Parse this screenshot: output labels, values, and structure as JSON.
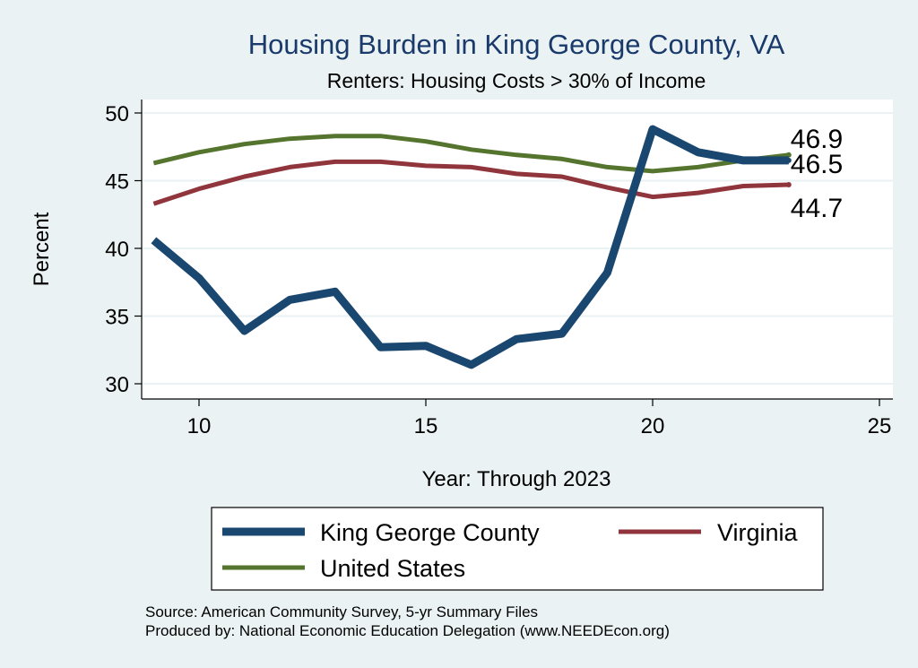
{
  "chart_data": {
    "type": "line",
    "title": "Housing Burden in King George County, VA",
    "subtitle": "Renters: Housing Costs > 30% of Income",
    "xlabel": "Year: Through 2023",
    "ylabel": "Percent",
    "xlim": [
      9,
      25
    ],
    "ylim": [
      30,
      50
    ],
    "xticks": [
      10,
      15,
      20,
      25
    ],
    "yticks": [
      30,
      35,
      40,
      45,
      50
    ],
    "grid": true,
    "x": [
      9,
      10,
      11,
      12,
      13,
      14,
      15,
      16,
      17,
      18,
      19,
      20,
      21,
      22,
      23
    ],
    "series": [
      {
        "name": "King George County",
        "color": "#1a476f",
        "values": [
          40.6,
          37.8,
          33.9,
          36.2,
          36.8,
          32.7,
          32.8,
          31.4,
          33.3,
          33.7,
          38.2,
          48.8,
          47.1,
          46.5,
          46.5
        ],
        "end_label": "46.5"
      },
      {
        "name": "Virginia",
        "color": "#90353b",
        "values": [
          43.3,
          44.4,
          45.3,
          46.0,
          46.4,
          46.4,
          46.1,
          46.0,
          45.5,
          45.3,
          44.5,
          43.8,
          44.1,
          44.6,
          44.7
        ],
        "end_label": "44.7"
      },
      {
        "name": "United States",
        "color": "#55752f",
        "values": [
          46.3,
          47.1,
          47.7,
          48.1,
          48.3,
          48.3,
          47.9,
          47.3,
          46.9,
          46.6,
          46.0,
          45.7,
          46.0,
          46.5,
          46.9
        ],
        "end_label": "46.9"
      }
    ],
    "legend_position": "bottom",
    "footer": [
      "Source: American Community Survey, 5-yr Summary Files",
      "Produced by: National Economic Education Delegation (www.NEEDEcon.org)"
    ]
  }
}
